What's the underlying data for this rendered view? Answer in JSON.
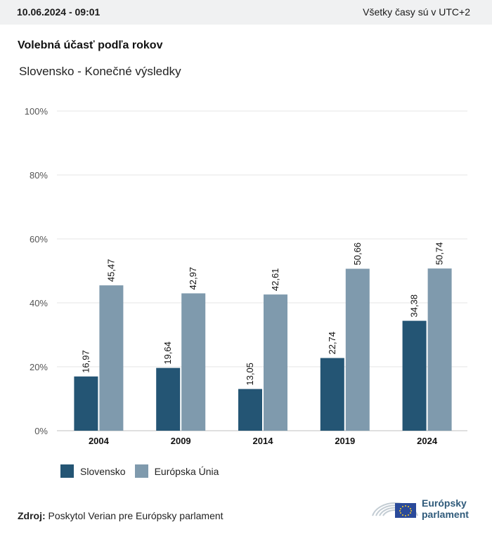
{
  "header": {
    "datetime": "10.06.2024 - 09:01",
    "timezone_note": "Všetky časy sú v UTC+2"
  },
  "title": "Volebná účasť podľa rokov",
  "subtitle": "Slovensko - Konečné výsledky",
  "colors": {
    "slovensko": "#245574",
    "eu": "#7f9aad",
    "grid": "#e6e6e6",
    "axis": "#bfbfbf"
  },
  "chart_data": {
    "type": "bar",
    "categories": [
      "2004",
      "2009",
      "2014",
      "2019",
      "2024"
    ],
    "series": [
      {
        "name": "Slovensko",
        "values": [
          16.97,
          19.64,
          13.05,
          22.74,
          34.38
        ],
        "labels": [
          "16,97",
          "19,64",
          "13,05",
          "22,74",
          "34,38"
        ]
      },
      {
        "name": "Európska Únia",
        "values": [
          45.47,
          42.97,
          42.61,
          50.66,
          50.74
        ],
        "labels": [
          "45,47",
          "42,97",
          "42,61",
          "50,66",
          "50,74"
        ]
      }
    ],
    "ylim": [
      0,
      100
    ],
    "yticks": [
      0,
      20,
      40,
      60,
      80,
      100
    ],
    "ytick_labels": [
      "0%",
      "20%",
      "40%",
      "60%",
      "80%",
      "100%"
    ],
    "grid": true,
    "legend": "bottom-left"
  },
  "source": {
    "label": "Zdroj:",
    "text": "Poskytol Verian pre Európsky parlament"
  },
  "logo": {
    "line1": "Európsky",
    "line2": "parlament"
  }
}
